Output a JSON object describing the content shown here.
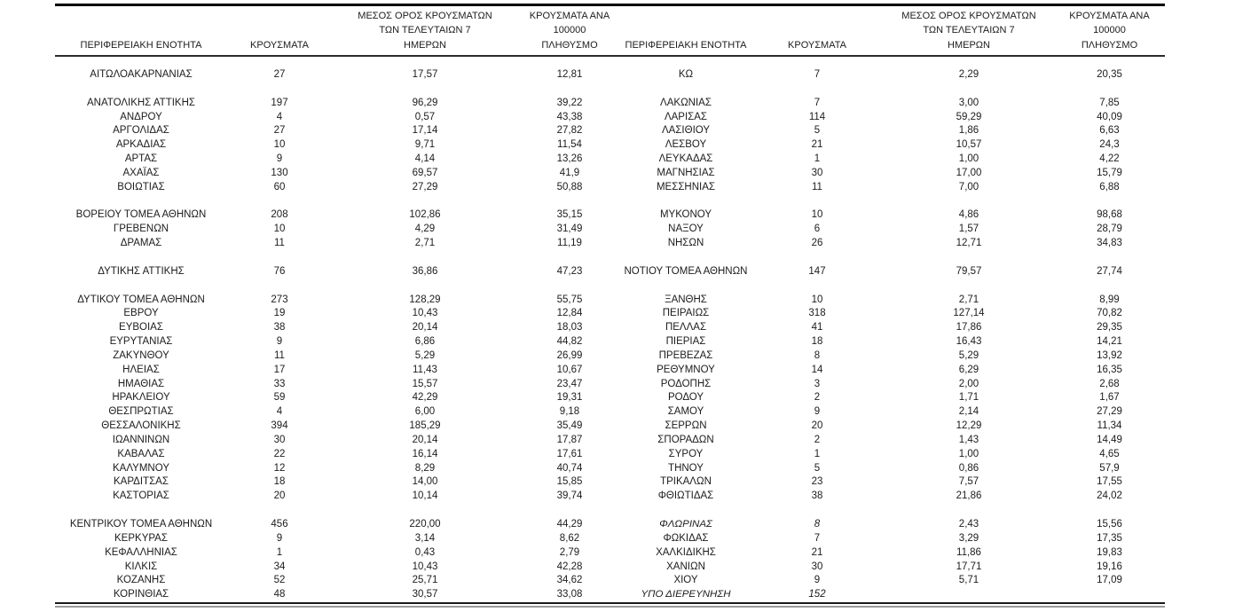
{
  "colors": {
    "text": "#1c1c1c",
    "border_dark": "#000000",
    "border_gray": "#9a9a9a"
  },
  "table": {
    "headers": [
      "ΠΕΡΙΦΕΡΕΙΑΚΗ ΕΝΟΤΗΤΑ",
      "ΚΡΟΥΣΜΑΤΑ",
      "ΜΕΣΟΣ ΟΡΟΣ ΚΡΟΥΣΜΑΤΩΝ\nΤΩΝ ΤΕΛΕΥΤΑΙΩΝ 7\nΗΜΕΡΩΝ",
      "ΚΡΟΥΣΜΑΤΑ ΑΝΑ 100000\nΠΛΗΘΥΣΜΟ",
      "ΠΕΡΙΦΕΡΕΙΑΚΗ ΕΝΟΤΗΤΑ",
      "ΚΡΟΥΣΜΑΤΑ",
      "ΜΕΣΟΣ ΟΡΟΣ ΚΡΟΥΣΜΑΤΩΝ\nΤΩΝ ΤΕΛΕΥΤΑΙΩΝ 7\nΗΜΕΡΩΝ",
      "ΚΡΟΥΣΜΑΤΑ ΑΝΑ 100000\nΠΛΗΘΥΣΜΟ"
    ],
    "rows": [
      {
        "cells": [
          "ΑΙΤΩΛΟΑΚΑΡΝΑΝΙΑΣ",
          "27",
          "17,57",
          "12,81",
          "ΚΩ",
          "7",
          "2,29",
          "20,35"
        ]
      },
      {
        "cells": [
          "",
          "",
          "",
          "",
          "",
          "",
          "",
          ""
        ]
      },
      {
        "cells": [
          "ΑΝΑΤΟΛΙΚΗΣ ΑΤΤΙΚΗΣ",
          "197",
          "96,29",
          "39,22",
          "ΛΑΚΩΝΙΑΣ",
          "7",
          "3,00",
          "7,85"
        ]
      },
      {
        "cells": [
          "ΑΝΔΡΟΥ",
          "4",
          "0,57",
          "43,38",
          "ΛΑΡΙΣΑΣ",
          "114",
          "59,29",
          "40,09"
        ]
      },
      {
        "cells": [
          "ΑΡΓΟΛΙΔΑΣ",
          "27",
          "17,14",
          "27,82",
          "ΛΑΣΙΘΙΟΥ",
          "5",
          "1,86",
          "6,63"
        ]
      },
      {
        "cells": [
          "ΑΡΚΑΔΙΑΣ",
          "10",
          "9,71",
          "11,54",
          "ΛΕΣΒΟΥ",
          "21",
          "10,57",
          "24,3"
        ]
      },
      {
        "cells": [
          "ΑΡΤΑΣ",
          "9",
          "4,14",
          "13,26",
          "ΛΕΥΚΑΔΑΣ",
          "1",
          "1,00",
          "4,22"
        ]
      },
      {
        "cells": [
          "ΑΧΑΪΑΣ",
          "130",
          "69,57",
          "41,9",
          "ΜΑΓΝΗΣΙΑΣ",
          "30",
          "17,00",
          "15,79"
        ]
      },
      {
        "cells": [
          "ΒΟΙΩΤΙΑΣ",
          "60",
          "27,29",
          "50,88",
          "ΜΕΣΣΗΝΙΑΣ",
          "11",
          "7,00",
          "6,88"
        ]
      },
      {
        "cells": [
          "",
          "",
          "",
          "",
          "",
          "",
          "",
          ""
        ]
      },
      {
        "cells": [
          "ΒΟΡΕΙΟΥ ΤΟΜΕΑ ΑΘΗΝΩΝ",
          "208",
          "102,86",
          "35,15",
          "ΜΥΚΟΝΟΥ",
          "10",
          "4,86",
          "98,68"
        ]
      },
      {
        "cells": [
          "ΓΡΕΒΕΝΩΝ",
          "10",
          "4,29",
          "31,49",
          "ΝΑΞΟΥ",
          "6",
          "1,57",
          "28,79"
        ]
      },
      {
        "cells": [
          "ΔΡΑΜΑΣ",
          "11",
          "2,71",
          "11,19",
          "ΝΗΣΩΝ",
          "26",
          "12,71",
          "34,83"
        ]
      },
      {
        "cells": [
          "",
          "",
          "",
          "",
          "",
          "",
          "",
          ""
        ]
      },
      {
        "cells": [
          "ΔΥΤΙΚΗΣ ΑΤΤΙΚΗΣ",
          "76",
          "36,86",
          "47,23",
          "ΝΟΤΙΟΥ ΤΟΜΕΑ ΑΘΗΝΩΝ",
          "147",
          "79,57",
          "27,74"
        ]
      },
      {
        "cells": [
          "",
          "",
          "",
          "",
          "",
          "",
          "",
          ""
        ]
      },
      {
        "cells": [
          "ΔΥΤΙΚΟΥ ΤΟΜΕΑ ΑΘΗΝΩΝ",
          "273",
          "128,29",
          "55,75",
          "ΞΑΝΘΗΣ",
          "10",
          "2,71",
          "8,99"
        ]
      },
      {
        "cells": [
          "ΕΒΡΟΥ",
          "19",
          "10,43",
          "12,84",
          "ΠΕΙΡΑΙΩΣ",
          "318",
          "127,14",
          "70,82"
        ]
      },
      {
        "cells": [
          "ΕΥΒΟΙΑΣ",
          "38",
          "20,14",
          "18,03",
          "ΠΕΛΛΑΣ",
          "41",
          "17,86",
          "29,35"
        ]
      },
      {
        "cells": [
          "ΕΥΡΥΤΑΝΙΑΣ",
          "9",
          "6,86",
          "44,82",
          "ΠΙΕΡΙΑΣ",
          "18",
          "16,43",
          "14,21"
        ]
      },
      {
        "cells": [
          "ΖΑΚΥΝΘΟΥ",
          "11",
          "5,29",
          "26,99",
          "ΠΡΕΒΕΖΑΣ",
          "8",
          "5,29",
          "13,92"
        ]
      },
      {
        "cells": [
          "ΗΛΕΙΑΣ",
          "17",
          "11,43",
          "10,67",
          "ΡΕΘΥΜΝΟΥ",
          "14",
          "6,29",
          "16,35"
        ]
      },
      {
        "cells": [
          "ΗΜΑΘΙΑΣ",
          "33",
          "15,57",
          "23,47",
          "ΡΟΔΟΠΗΣ",
          "3",
          "2,00",
          "2,68"
        ]
      },
      {
        "cells": [
          "ΗΡΑΚΛΕΙΟΥ",
          "59",
          "42,29",
          "19,31",
          "ΡΟΔΟΥ",
          "2",
          "1,71",
          "1,67"
        ]
      },
      {
        "cells": [
          "ΘΕΣΠΡΩΤΙΑΣ",
          "4",
          "6,00",
          "9,18",
          "ΣΑΜΟΥ",
          "9",
          "2,14",
          "27,29"
        ]
      },
      {
        "cells": [
          "ΘΕΣΣΑΛΟΝΙΚΗΣ",
          "394",
          "185,29",
          "35,49",
          "ΣΕΡΡΩΝ",
          "20",
          "12,29",
          "11,34"
        ]
      },
      {
        "cells": [
          "ΙΩΑΝΝΙΝΩΝ",
          "30",
          "20,14",
          "17,87",
          "ΣΠΟΡΑΔΩΝ",
          "2",
          "1,43",
          "14,49"
        ]
      },
      {
        "cells": [
          "ΚΑΒΑΛΑΣ",
          "22",
          "16,14",
          "17,61",
          "ΣΥΡΟΥ",
          "1",
          "1,00",
          "4,65"
        ]
      },
      {
        "cells": [
          "ΚΑΛΥΜΝΟΥ",
          "12",
          "8,29",
          "40,74",
          "ΤΗΝΟΥ",
          "5",
          "0,86",
          "57,9"
        ]
      },
      {
        "cells": [
          "ΚΑΡΔΙΤΣΑΣ",
          "18",
          "14,00",
          "15,85",
          "ΤΡΙΚΑΛΩΝ",
          "23",
          "7,57",
          "17,55"
        ]
      },
      {
        "cells": [
          "ΚΑΣΤΟΡΙΑΣ",
          "20",
          "10,14",
          "39,74",
          "ΦΘΙΩΤΙΔΑΣ",
          "38",
          "21,86",
          "24,02"
        ]
      },
      {
        "cells": [
          "",
          "",
          "",
          "",
          "",
          "",
          "",
          ""
        ]
      },
      {
        "cells": [
          "ΚΕΝΤΡΙΚΟΥ ΤΟΜΕΑ ΑΘΗΝΩΝ",
          "456",
          "220,00",
          "44,29",
          "ΦΛΩΡΙΝΑΣ",
          "8",
          "2,43",
          "15,56"
        ],
        "right_italic": true
      },
      {
        "cells": [
          "ΚΕΡΚΥΡΑΣ",
          "9",
          "3,14",
          "8,62",
          "ΦΩΚΙΔΑΣ",
          "7",
          "3,29",
          "17,35"
        ]
      },
      {
        "cells": [
          "ΚΕΦΑΛΛΗΝΙΑΣ",
          "1",
          "0,43",
          "2,79",
          "ΧΑΛΚΙΔΙΚΗΣ",
          "21",
          "11,86",
          "19,83"
        ]
      },
      {
        "cells": [
          "ΚΙΛΚΙΣ",
          "34",
          "10,43",
          "42,28",
          "ΧΑΝΙΩΝ",
          "30",
          "17,71",
          "19,16"
        ]
      },
      {
        "cells": [
          "ΚΟΖΑΝΗΣ",
          "52",
          "25,71",
          "34,62",
          "ΧΙΟΥ",
          "9",
          "5,71",
          "17,09"
        ]
      },
      {
        "cells": [
          "ΚΟΡΙΝΘΙΑΣ",
          "48",
          "30,57",
          "33,08",
          "ΥΠΟ ΔΙΕΡΕΥΝΗΣΗ",
          "152",
          "",
          ""
        ],
        "right_italic": true
      }
    ]
  }
}
